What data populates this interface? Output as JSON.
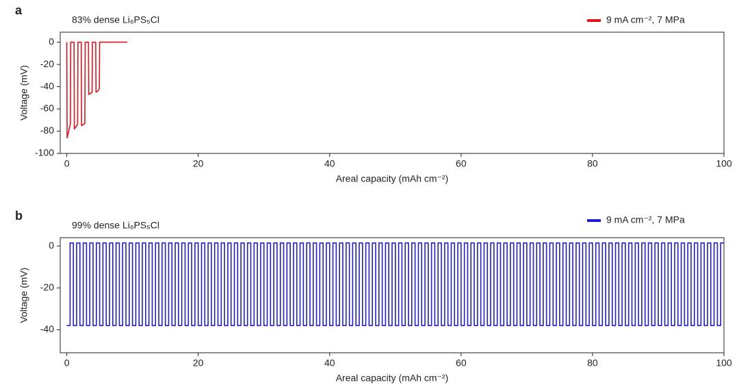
{
  "chart_data": [
    {
      "type": "line",
      "panel": "a",
      "title": "83% dense Li₆PS₅Cl",
      "xlabel": "Areal capacity (mAh cm⁻²)",
      "ylabel": "Voltage (mV)",
      "xlim": [
        -1,
        100
      ],
      "ylim": [
        -100,
        9
      ],
      "xticks": [
        0,
        20,
        40,
        60,
        80,
        100
      ],
      "yticks": [
        0,
        -20,
        -40,
        -60,
        -80,
        -100
      ],
      "series": [
        {
          "name": "9 mA cm⁻², 7 MPa",
          "color": "#e8121b",
          "x": [
            0,
            0.05,
            0.3,
            0.55,
            0.6,
            1.1,
            1.15,
            1.4,
            1.65,
            1.7,
            2.2,
            2.25,
            2.5,
            2.75,
            2.8,
            3.3,
            3.35,
            3.6,
            3.85,
            3.9,
            4.4,
            4.45,
            4.7,
            4.95,
            5.0,
            5.5,
            9.2
          ],
          "values": [
            0,
            -86,
            -80,
            -73,
            0,
            0,
            -78,
            -76,
            -74,
            0,
            0,
            -75,
            -74,
            -73,
            0,
            0,
            -47,
            -46,
            -45,
            0,
            0,
            -45,
            -44,
            -42,
            0,
            0,
            0
          ]
        }
      ]
    },
    {
      "type": "line",
      "panel": "b",
      "title": "99% dense Li₆PS₅Cl",
      "xlabel": "Areal capacity (mAh cm⁻²)",
      "ylabel": "Voltage (mV)",
      "xlim": [
        -1,
        100
      ],
      "ylim": [
        -51,
        4
      ],
      "xticks": [
        0,
        20,
        40,
        60,
        80,
        100
      ],
      "yticks": [
        0,
        -20,
        -40
      ],
      "series": [
        {
          "name": "9 mA cm⁻², 7 MPa",
          "color": "#1c1cd6",
          "x": [
            0,
            0.5,
            0.5,
            1,
            1,
            1.5,
            1.5,
            2,
            2,
            2.5,
            2.5,
            3,
            3,
            3.5,
            3.5,
            4,
            4,
            4.5,
            4.5,
            5,
            5,
            5.5,
            5.5,
            6,
            6,
            6.5,
            6.5,
            7,
            7,
            7.5,
            7.5,
            8,
            8,
            8.5,
            8.5,
            9,
            9,
            9.5,
            9.5,
            10,
            10,
            10.5,
            10.5,
            11,
            11,
            11.5,
            11.5,
            12,
            12,
            12.5,
            12.5,
            13,
            13,
            13.5,
            13.5,
            14,
            14,
            14.5,
            14.5,
            15,
            15,
            15.5,
            15.5,
            16,
            16,
            16.5,
            16.5,
            17,
            17,
            17.5,
            17.5,
            18,
            18,
            18.5,
            18.5,
            19,
            19,
            19.5,
            19.5,
            20,
            20,
            20.5,
            20.5,
            21,
            21,
            21.5,
            21.5,
            22,
            22,
            22.5,
            22.5,
            23,
            23,
            23.5,
            23.5,
            24,
            24,
            24.5,
            24.5,
            25,
            25,
            25.5,
            25.5,
            26,
            26,
            26.5,
            26.5,
            27,
            27,
            27.5,
            27.5,
            28,
            28,
            28.5,
            28.5,
            29,
            29,
            29.5,
            29.5,
            30,
            30,
            30.5,
            30.5,
            31,
            31,
            31.5,
            31.5,
            32,
            32,
            32.5,
            32.5,
            33,
            33,
            33.5,
            33.5,
            34,
            34,
            34.5,
            34.5,
            35,
            35,
            35.5,
            35.5,
            36,
            36,
            36.5,
            36.5,
            37,
            37,
            37.5,
            37.5,
            38,
            38,
            38.5,
            38.5,
            39,
            39,
            39.5,
            39.5,
            40,
            40,
            40.5,
            40.5,
            41,
            41,
            41.5,
            41.5,
            42,
            42,
            42.5,
            42.5,
            43,
            43,
            43.5,
            43.5,
            44,
            44,
            44.5,
            44.5,
            45,
            45,
            45.5,
            45.5,
            46,
            46,
            46.5,
            46.5,
            47,
            47,
            47.5,
            47.5,
            48,
            48,
            48.5,
            48.5,
            49,
            49,
            49.5,
            49.5,
            50,
            50,
            50.5,
            50.5,
            51,
            51,
            51.5,
            51.5,
            52,
            52,
            52.5,
            52.5,
            53,
            53,
            53.5,
            53.5,
            54,
            54,
            54.5,
            54.5,
            55,
            55,
            55.5,
            55.5,
            56,
            56,
            56.5,
            56.5,
            57,
            57,
            57.5,
            57.5,
            58,
            58,
            58.5,
            58.5,
            59,
            59,
            59.5,
            59.5,
            60,
            60,
            60.5,
            60.5,
            61,
            61,
            61.5,
            61.5,
            62,
            62,
            62.5,
            62.5,
            63,
            63,
            63.5,
            63.5,
            64,
            64,
            64.5,
            64.5,
            65,
            65,
            65.5,
            65.5,
            66,
            66,
            66.5,
            66.5,
            67,
            67,
            67.5,
            67.5,
            68,
            68,
            68.5,
            68.5,
            69,
            69,
            69.5,
            69.5,
            70,
            70,
            70.5,
            70.5,
            71,
            71,
            71.5,
            71.5,
            72,
            72,
            72.5,
            72.5,
            73,
            73,
            73.5,
            73.5,
            74,
            74,
            74.5,
            74.5,
            75,
            75,
            75.5,
            75.5,
            76,
            76,
            76.5,
            76.5,
            77,
            77,
            77.5,
            77.5,
            78,
            78,
            78.5,
            78.5,
            79,
            79,
            79.5,
            79.5,
            80,
            80,
            80.5,
            80.5,
            81,
            81,
            81.5,
            81.5,
            82,
            82,
            82.5,
            82.5,
            83,
            83,
            83.5,
            83.5,
            84,
            84,
            84.5,
            84.5,
            85,
            85,
            85.5,
            85.5,
            86,
            86,
            86.5,
            86.5,
            87,
            87,
            87.5,
            87.5,
            88,
            88,
            88.5,
            88.5,
            89,
            89,
            89.5,
            89.5,
            90,
            90,
            90.5,
            90.5,
            91,
            91,
            91.5,
            91.5,
            92,
            92,
            92.5,
            92.5,
            93,
            93,
            93.5,
            93.5,
            94,
            94,
            94.5,
            94.5,
            95,
            95,
            95.5,
            95.5,
            96,
            96,
            96.5,
            96.5,
            97,
            97,
            97.5,
            97.5,
            98,
            98,
            98.5,
            98.5,
            99,
            99,
            99.5,
            99.5,
            100
          ],
          "values": [
            -38,
            -38,
            1.5,
            1.5,
            -38,
            -38,
            1.5,
            1.5,
            -38,
            -38,
            1.5,
            1.5,
            -38,
            -38,
            1.5,
            1.5,
            -38,
            -38,
            1.5,
            1.5,
            -38,
            -38,
            1.5,
            1.5,
            -38,
            -38,
            1.5,
            1.5,
            -38,
            -38,
            1.5,
            1.5,
            -38,
            -38,
            1.5,
            1.5,
            -38,
            -38,
            1.5,
            1.5,
            -38,
            -38,
            1.5,
            1.5,
            -38,
            -38,
            1.5,
            1.5,
            -38,
            -38,
            1.5,
            1.5,
            -38,
            -38,
            1.5,
            1.5,
            -38,
            -38,
            1.5,
            1.5,
            -38,
            -38,
            1.5,
            1.5,
            -38,
            -38,
            1.5,
            1.5,
            -38,
            -38,
            1.5,
            1.5,
            -38,
            -38,
            1.5,
            1.5,
            -38,
            -38,
            1.5,
            1.5,
            -38,
            -38,
            1.5,
            1.5,
            -38,
            -38,
            1.5,
            1.5,
            -38,
            -38,
            1.5,
            1.5,
            -38,
            -38,
            1.5,
            1.5,
            -38,
            -38,
            1.5,
            1.5,
            -38,
            -38,
            1.5,
            1.5,
            -38,
            -38,
            1.5,
            1.5,
            -38,
            -38,
            1.5,
            1.5,
            -38,
            -38,
            1.5,
            1.5,
            -38,
            -38,
            1.5,
            1.5,
            -38,
            -38,
            1.5,
            1.5,
            -38,
            -38,
            1.5,
            1.5,
            -38,
            -38,
            1.5,
            1.5,
            -38,
            -38,
            1.5,
            1.5,
            -38,
            -38,
            1.5,
            1.5,
            -38,
            -38,
            1.5,
            1.5,
            -38,
            -38,
            1.5,
            1.5,
            -38,
            -38,
            1.5,
            1.5,
            -38,
            -38,
            1.5,
            1.5,
            -38,
            -38,
            1.5,
            1.5,
            -38,
            -38,
            1.5,
            1.5,
            -38,
            -38,
            1.5,
            1.5,
            -38,
            -38,
            1.5,
            1.5,
            -38,
            -38,
            1.5,
            1.5,
            -38,
            -38,
            1.5,
            1.5,
            -38,
            -38,
            1.5,
            1.5,
            -38,
            -38,
            1.5,
            1.5,
            -38,
            -38,
            1.5,
            1.5,
            -38,
            -38,
            1.5,
            1.5,
            -38,
            -38,
            1.5,
            1.5,
            -38,
            -38,
            1.5,
            1.5,
            -38,
            -38,
            1.5,
            1.5,
            -38,
            -38,
            1.5,
            1.5,
            -38,
            -38,
            1.5,
            1.5,
            -38,
            -38,
            1.5,
            1.5,
            -38,
            -38,
            1.5,
            1.5,
            -38,
            -38,
            1.5,
            1.5,
            -38,
            -38,
            1.5,
            1.5,
            -38,
            -38,
            1.5,
            1.5,
            -38,
            -38,
            1.5,
            1.5,
            -38,
            -38,
            1.5,
            1.5,
            -38,
            -38,
            1.5,
            1.5,
            -38,
            -38,
            1.5,
            1.5,
            -38,
            -38,
            1.5,
            1.5,
            -38,
            -38,
            1.5,
            1.5,
            -38,
            -38,
            1.5,
            1.5,
            -38,
            -38,
            1.5,
            1.5,
            -38,
            -38,
            1.5,
            1.5,
            -38,
            -38,
            1.5,
            1.5,
            -38,
            -38,
            1.5,
            1.5,
            -38,
            -38,
            1.5,
            1.5,
            -38,
            -38,
            1.5,
            1.5,
            -38,
            -38,
            1.5,
            1.5,
            -38,
            -38,
            1.5,
            1.5,
            -38,
            -38,
            1.5,
            1.5,
            -38,
            -38,
            1.5,
            1.5,
            -38,
            -38,
            1.5,
            1.5,
            -38,
            -38,
            1.5,
            1.5,
            -38,
            -38,
            1.5,
            1.5,
            -38,
            -38,
            1.5,
            1.5,
            -38,
            -38,
            1.5,
            1.5,
            -38,
            -38,
            1.5,
            1.5,
            -38,
            -38,
            1.5,
            1.5,
            -38,
            -38,
            1.5,
            1.5,
            -38,
            -38,
            1.5,
            1.5,
            -38,
            -38,
            1.5,
            1.5,
            -38,
            -38,
            1.5,
            1.5,
            -38,
            -38,
            1.5,
            1.5,
            -38,
            -38,
            1.5,
            1.5,
            -38,
            -38,
            1.5,
            1.5,
            -38,
            -38,
            1.5,
            1.5,
            -38,
            -38,
            1.5,
            1.5,
            -38,
            -38,
            1.5,
            1.5,
            -38,
            -38,
            1.5,
            1.5,
            -38,
            -38,
            1.5,
            1.5,
            -38,
            -38,
            1.5,
            1.5,
            -38,
            -38,
            1.5,
            1.5,
            -38,
            -38,
            1.5,
            1.5,
            -38,
            -38,
            1.5,
            1.5,
            -38,
            -38,
            1.5,
            1.5
          ]
        }
      ]
    }
  ]
}
